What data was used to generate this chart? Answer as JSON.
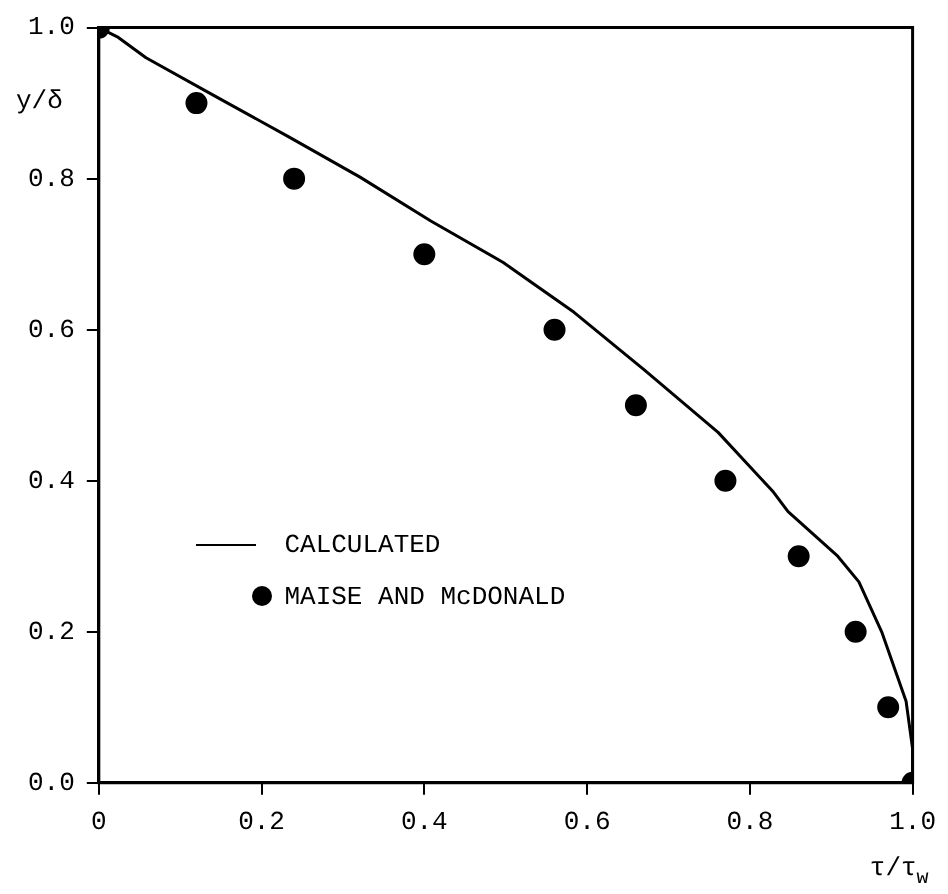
{
  "chart_data": {
    "type": "line",
    "xlabel": "τ/τ$_{w}$",
    "ylabel": "y/δ",
    "xlim": [
      0,
      1.0
    ],
    "ylim": [
      0,
      1.0
    ],
    "xticks": [
      0,
      {
        "value": 0.2,
        "label": "0.2"
      },
      {
        "value": 0.4,
        "label": "0.4"
      },
      {
        "value": 0.6,
        "label": "0.6"
      },
      {
        "value": 0.8,
        "label": "0.8"
      },
      {
        "value": 1.0,
        "label": "1.0"
      }
    ],
    "yticks": [
      {
        "value": 0,
        "label": "0.0"
      },
      {
        "value": 0.2,
        "label": "0.2"
      },
      {
        "value": 0.4,
        "label": "0.4"
      },
      {
        "value": 0.6,
        "label": "0.6"
      },
      {
        "value": 0.8,
        "label": "0.8"
      },
      {
        "value": 1.0,
        "label": "1.0"
      }
    ],
    "grid": false,
    "legend": "bottom left",
    "series": [
      {
        "name": "CALCULATED",
        "type": "line",
        "color": "#000000",
        "marker": "none",
        "line_style": "solid",
        "x": [
          0,
          0.024,
          0.058,
          0.145,
          0.234,
          0.321,
          0.408,
          0.497,
          0.584,
          0.671,
          0.761,
          0.829,
          0.847,
          0.908,
          0.934,
          0.962,
          0.992,
          1.0,
          1.0
        ],
        "values": [
          1.0,
          0.987,
          0.96,
          0.908,
          0.855,
          0.802,
          0.744,
          0.689,
          0.623,
          0.546,
          0.464,
          0.385,
          0.359,
          0.3,
          0.266,
          0.2,
          0.108,
          0.045,
          0
        ]
      },
      {
        "name": "MAISE AND McDONALD",
        "type": "scatter",
        "color": "#000000",
        "marker": "circle",
        "x": [
          0,
          0.12,
          0.24,
          0.4,
          0.56,
          0.66,
          0.77,
          0.86,
          0.93,
          0.97,
          1.0
        ],
        "values": [
          1.0,
          0.9,
          0.8,
          0.7,
          0.6,
          0.5,
          0.4,
          0.3,
          0.2,
          0.1,
          0
        ]
      }
    ]
  }
}
